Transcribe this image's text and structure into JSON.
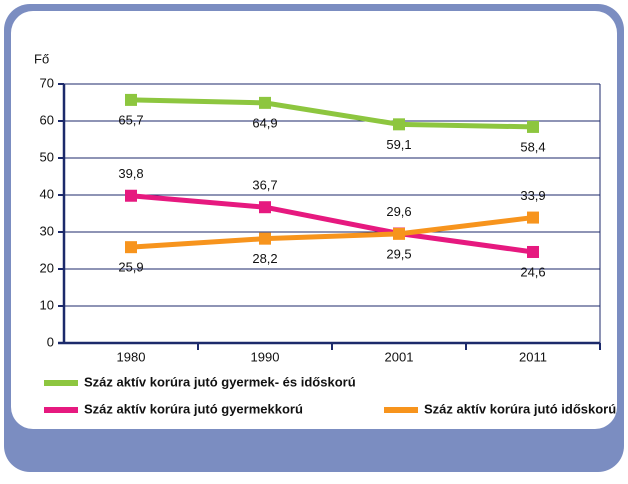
{
  "chart_data": {
    "type": "line",
    "y_label": "Fő",
    "categories": [
      "1980",
      "1990",
      "2001",
      "2011"
    ],
    "series": [
      {
        "name": "Száz aktív korúra jutó gyermek- és időskorú",
        "color": "#8dc63f",
        "values": [
          65.7,
          64.9,
          59.1,
          58.4
        ],
        "value_labels": [
          "65,7",
          "64,9",
          "59,1",
          "58,4"
        ]
      },
      {
        "name": "Száz aktív korúra jutó gyermekkorú",
        "color": "#e6197f",
        "values": [
          39.8,
          36.7,
          29.6,
          24.6
        ],
        "value_labels": [
          "39,8",
          "36,7",
          "29,6",
          "24,6"
        ]
      },
      {
        "name": "Száz aktív korúra jutó időskorú",
        "color": "#f7941d",
        "values": [
          25.9,
          28.2,
          29.5,
          33.9
        ],
        "value_labels": [
          "25,9",
          "28,2",
          "29,5",
          "33,9"
        ]
      }
    ],
    "ylim": [
      0,
      70
    ],
    "yticks": [
      0,
      10,
      20,
      30,
      40,
      50,
      60,
      70
    ],
    "grid": true
  }
}
